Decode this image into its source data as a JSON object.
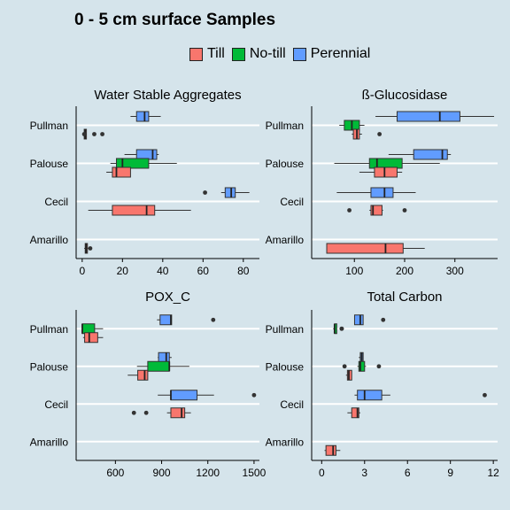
{
  "title": "0 - 5 cm surface Samples",
  "legend": [
    {
      "label": "Till",
      "color": "#f8766d"
    },
    {
      "label": "No-till",
      "color": "#00ba38"
    },
    {
      "label": "Perennial",
      "color": "#619cff"
    }
  ],
  "chart_data": [
    {
      "type": "boxplot",
      "orientation": "horizontal",
      "title": "Water Stable Aggregates",
      "categories": [
        "Pullman",
        "Palouse",
        "Cecil",
        "Amarillo"
      ],
      "xlim": [
        -3,
        88
      ],
      "xticks": [
        0,
        20,
        40,
        60,
        80
      ],
      "boxes": [
        {
          "category": "Pullman",
          "group": "Perennial",
          "min": 24,
          "q1": 27,
          "median": 31,
          "q3": 33,
          "max": 39,
          "outliers": []
        },
        {
          "category": "Pullman",
          "group": "Till",
          "min": 1,
          "q1": 1,
          "median": 1.5,
          "q3": 2,
          "max": 2,
          "outliers": [
            1,
            6,
            10
          ]
        },
        {
          "category": "Palouse",
          "group": "Perennial",
          "min": 21,
          "q1": 27,
          "median": 35,
          "q3": 37,
          "max": 38,
          "outliers": []
        },
        {
          "category": "Palouse",
          "group": "No-till",
          "min": 14,
          "q1": 17,
          "median": 20,
          "q3": 33,
          "max": 47,
          "outliers": []
        },
        {
          "category": "Palouse",
          "group": "Till",
          "min": 12,
          "q1": 15,
          "median": 17,
          "q3": 24,
          "max": 24,
          "outliers": []
        },
        {
          "category": "Cecil",
          "group": "Perennial",
          "min": 69,
          "q1": 71,
          "median": 74,
          "q3": 76,
          "max": 83,
          "outliers": [
            61
          ]
        },
        {
          "category": "Cecil",
          "group": "Till",
          "min": 3,
          "q1": 15,
          "median": 32,
          "q3": 36,
          "max": 54,
          "outliers": []
        },
        {
          "category": "Amarillo",
          "group": "Till",
          "min": 1,
          "q1": 1.5,
          "median": 2,
          "q3": 2.5,
          "max": 3,
          "outliers": [
            4
          ]
        }
      ]
    },
    {
      "type": "boxplot",
      "orientation": "horizontal",
      "title": "ß-Glucosidase",
      "categories": [
        "Pullman",
        "Palouse",
        "Cecil",
        "Amarillo"
      ],
      "xlim": [
        15,
        385
      ],
      "xticks": [
        100,
        200,
        300
      ],
      "boxes": [
        {
          "category": "Pullman",
          "group": "Perennial",
          "min": 142,
          "q1": 185,
          "median": 270,
          "q3": 310,
          "max": 378,
          "outliers": []
        },
        {
          "category": "Pullman",
          "group": "No-till",
          "min": 70,
          "q1": 80,
          "median": 95,
          "q3": 110,
          "max": 120,
          "outliers": []
        },
        {
          "category": "Pullman",
          "group": "Till",
          "min": 95,
          "q1": 98,
          "median": 105,
          "q3": 110,
          "max": 115,
          "outliers": [
            150
          ]
        },
        {
          "category": "Palouse",
          "group": "Perennial",
          "min": 168,
          "q1": 218,
          "median": 275,
          "q3": 285,
          "max": 292,
          "outliers": []
        },
        {
          "category": "Palouse",
          "group": "No-till",
          "min": 60,
          "q1": 130,
          "median": 145,
          "q3": 195,
          "max": 270,
          "outliers": []
        },
        {
          "category": "Palouse",
          "group": "Till",
          "min": 110,
          "q1": 140,
          "median": 160,
          "q3": 185,
          "max": 195,
          "outliers": []
        },
        {
          "category": "Cecil",
          "group": "Perennial",
          "min": 65,
          "q1": 133,
          "median": 160,
          "q3": 177,
          "max": 222,
          "outliers": []
        },
        {
          "category": "Cecil",
          "group": "Till",
          "min": 130,
          "q1": 133,
          "median": 137,
          "q3": 155,
          "max": 157,
          "outliers": [
            90,
            200
          ]
        },
        {
          "category": "Amarillo",
          "group": "Till",
          "min": 45,
          "q1": 45,
          "median": 162,
          "q3": 197,
          "max": 240,
          "outliers": []
        }
      ]
    },
    {
      "type": "boxplot",
      "orientation": "horizontal",
      "title": "POX_C",
      "categories": [
        "Pullman",
        "Palouse",
        "Cecil",
        "Amarillo"
      ],
      "xlim": [
        345,
        1535
      ],
      "xticks": [
        600,
        900,
        1200,
        1500
      ],
      "boxes": [
        {
          "category": "Pullman",
          "group": "Perennial",
          "min": 870,
          "q1": 890,
          "median": 960,
          "q3": 965,
          "max": 965,
          "outliers": [
            1235
          ]
        },
        {
          "category": "Pullman",
          "group": "No-till",
          "min": 385,
          "q1": 385,
          "median": 385,
          "q3": 465,
          "max": 520,
          "outliers": []
        },
        {
          "category": "Pullman",
          "group": "Till",
          "min": 390,
          "q1": 400,
          "median": 430,
          "q3": 485,
          "max": 520,
          "outliers": []
        },
        {
          "category": "Palouse",
          "group": "Perennial",
          "min": 875,
          "q1": 880,
          "median": 930,
          "q3": 950,
          "max": 965,
          "outliers": []
        },
        {
          "category": "Palouse",
          "group": "No-till",
          "min": 740,
          "q1": 810,
          "median": 950,
          "q3": 950,
          "max": 1080,
          "outliers": []
        },
        {
          "category": "Palouse",
          "group": "Till",
          "min": 680,
          "q1": 745,
          "median": 790,
          "q3": 810,
          "max": 810,
          "outliers": []
        },
        {
          "category": "Cecil",
          "group": "Perennial",
          "min": 875,
          "q1": 960,
          "median": 960,
          "q3": 1130,
          "max": 1240,
          "outliers": [
            1500
          ]
        },
        {
          "category": "Cecil",
          "group": "Till",
          "min": 935,
          "q1": 960,
          "median": 1030,
          "q3": 1050,
          "max": 1090,
          "outliers": [
            720,
            800
          ]
        }
      ]
    },
    {
      "type": "boxplot",
      "orientation": "horizontal",
      "title": "Total Carbon",
      "categories": [
        "Pullman",
        "Palouse",
        "Cecil",
        "Amarillo"
      ],
      "xlim": [
        -0.7,
        12.3
      ],
      "xticks": [
        0,
        3,
        6,
        9,
        12
      ],
      "boxes": [
        {
          "category": "Pullman",
          "group": "Perennial",
          "min": 2.3,
          "q1": 2.3,
          "median": 2.7,
          "q3": 2.9,
          "max": 2.9,
          "outliers": [
            4.3
          ]
        },
        {
          "category": "Pullman",
          "group": "No-till",
          "min": 0.8,
          "q1": 0.9,
          "median": 0.9,
          "q3": 1.0,
          "max": 1.0,
          "outliers": [
            1.4,
            1.4
          ]
        },
        {
          "category": "Palouse",
          "group": "Perennial",
          "min": 2.6,
          "q1": 2.7,
          "median": 2.8,
          "q3": 2.9,
          "max": 2.9,
          "outliers": []
        },
        {
          "category": "Palouse",
          "group": "No-till",
          "min": 2.5,
          "q1": 2.6,
          "median": 2.7,
          "q3": 3.0,
          "max": 3.1,
          "outliers": [
            1.6,
            4.0
          ]
        },
        {
          "category": "Palouse",
          "group": "Till",
          "min": 1.7,
          "q1": 1.8,
          "median": 1.9,
          "q3": 2.1,
          "max": 2.1,
          "outliers": []
        },
        {
          "category": "Cecil",
          "group": "Perennial",
          "min": 2.3,
          "q1": 2.5,
          "median": 3.0,
          "q3": 4.2,
          "max": 4.8,
          "outliers": [
            11.4
          ]
        },
        {
          "category": "Cecil",
          "group": "Till",
          "min": 1.8,
          "q1": 2.1,
          "median": 2.5,
          "q3": 2.6,
          "max": 2.7,
          "outliers": []
        },
        {
          "category": "Amarillo",
          "group": "Till",
          "min": 0.2,
          "q1": 0.3,
          "median": 0.8,
          "q3": 1.0,
          "max": 1.3,
          "outliers": []
        }
      ]
    }
  ]
}
